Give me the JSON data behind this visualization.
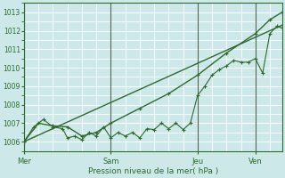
{
  "background_color": "#cce8e8",
  "grid_color": "#ffffff",
  "line_color": "#2d6a2d",
  "marker_color": "#2d6a2d",
  "axis_color": "#2d6a2d",
  "xlabel": "Pression niveau de la mer( hPa )",
  "ylim": [
    1005.5,
    1013.5
  ],
  "yticks": [
    1006,
    1007,
    1008,
    1009,
    1010,
    1011,
    1012,
    1013
  ],
  "xlim": [
    0,
    107
  ],
  "day_labels": [
    "Mer",
    "Sam",
    "Jeu",
    "Ven"
  ],
  "day_positions": [
    0,
    36,
    72,
    96
  ],
  "vline_color": "#556655",
  "smooth_line": {
    "x": [
      0,
      107
    ],
    "y": [
      1006.0,
      1012.3
    ]
  },
  "zigzag_line": {
    "x": [
      0,
      4,
      8,
      12,
      16,
      18,
      21,
      24,
      27,
      30,
      33,
      36,
      39,
      42,
      45,
      48,
      51,
      54,
      57,
      60,
      63,
      66,
      69,
      72,
      75,
      78,
      81,
      84,
      87,
      90,
      93,
      96,
      99,
      102,
      105,
      107
    ],
    "y": [
      1006.0,
      1006.8,
      1007.2,
      1006.8,
      1006.7,
      1006.2,
      1006.3,
      1006.1,
      1006.5,
      1006.3,
      1006.8,
      1006.2,
      1006.5,
      1006.3,
      1006.5,
      1006.2,
      1006.7,
      1006.65,
      1007.0,
      1006.7,
      1007.0,
      1006.65,
      1007.0,
      1008.5,
      1009.0,
      1009.6,
      1009.9,
      1010.1,
      1010.4,
      1010.3,
      1010.3,
      1010.5,
      1009.7,
      1011.85,
      1012.25,
      1012.15
    ]
  },
  "trend_line": {
    "x": [
      0,
      6,
      12,
      18,
      24,
      30,
      36,
      48,
      60,
      72,
      84,
      96,
      102,
      107
    ],
    "y": [
      1006.0,
      1007.0,
      1006.85,
      1006.8,
      1006.3,
      1006.5,
      1007.0,
      1007.8,
      1008.6,
      1009.6,
      1010.8,
      1011.85,
      1012.6,
      1013.0
    ]
  }
}
